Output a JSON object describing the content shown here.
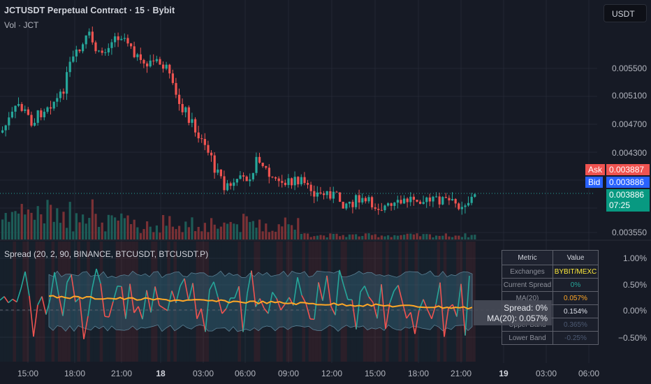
{
  "header": {
    "title": "JCTUSDT Perpetual Contract · 15 · Bybit",
    "volume_label": "Vol · JCT",
    "currency_button": "USDT"
  },
  "price_axis": {
    "ticks": [
      "0.005500",
      "0.005100",
      "0.004700",
      "0.004300",
      "0.003550"
    ],
    "ask_label": "Ask",
    "ask_value": "0.003887",
    "bid_label": "Bid",
    "bid_value": "0.003886",
    "last_value": "0.003886",
    "countdown": "07:25"
  },
  "indicator": {
    "title": "Spread (20, 2, 90, BINANCE, BTCUSDT, BTCUSDT.P)",
    "axis_ticks": [
      "1.00%",
      "0.50%",
      "0.00%",
      "−0.50%"
    ],
    "tooltip_spread": "Spread: 0%",
    "tooltip_ma": "MA(20): 0.057%"
  },
  "metrics_table": {
    "header": [
      "Metric",
      "Value"
    ],
    "rows": [
      {
        "metric": "Exchanges",
        "value": "BYBIT/MEXC"
      },
      {
        "metric": "Current Spread",
        "value": "0%"
      },
      {
        "metric": "MA(20)",
        "value": "0.057%"
      },
      {
        "metric": "",
        "value": "0.154%"
      },
      {
        "metric": "Upper Band",
        "value": "0.365%"
      },
      {
        "metric": "Lower Band",
        "value": "-0.25%"
      }
    ]
  },
  "time_axis": [
    {
      "label": "15:00",
      "bold": false
    },
    {
      "label": "18:00",
      "bold": false
    },
    {
      "label": "21:00",
      "bold": false
    },
    {
      "label": "18",
      "bold": true
    },
    {
      "label": "03:00",
      "bold": false
    },
    {
      "label": "06:00",
      "bold": false
    },
    {
      "label": "09:00",
      "bold": false
    },
    {
      "label": "12:00",
      "bold": false
    },
    {
      "label": "15:00",
      "bold": false
    },
    {
      "label": "18:00",
      "bold": false
    },
    {
      "label": "21:00",
      "bold": false
    },
    {
      "label": "19",
      "bold": true
    },
    {
      "label": "03:00",
      "bold": false
    },
    {
      "label": "06:00",
      "bold": false
    }
  ],
  "colors": {
    "background": "#161a25",
    "up": "#26a69a",
    "down": "#ef5350",
    "ma_line": "#ffa726",
    "bid_pill": "#2962ff",
    "band_fill": "#2f5a6e"
  }
}
